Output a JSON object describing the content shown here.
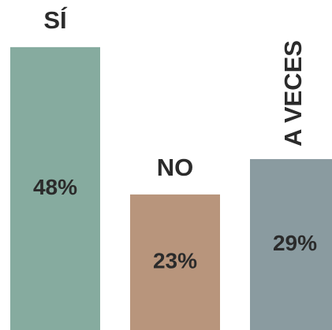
{
  "chart_data": {
    "type": "bar",
    "categories": [
      "SÍ",
      "NO",
      "A VECES"
    ],
    "values": [
      48,
      23,
      29
    ],
    "value_labels": [
      "48%",
      "23%",
      "29%"
    ],
    "colors": [
      "#86ab9f",
      "#b8957c",
      "#8a9ba0"
    ],
    "ylim": [
      0,
      56
    ]
  }
}
